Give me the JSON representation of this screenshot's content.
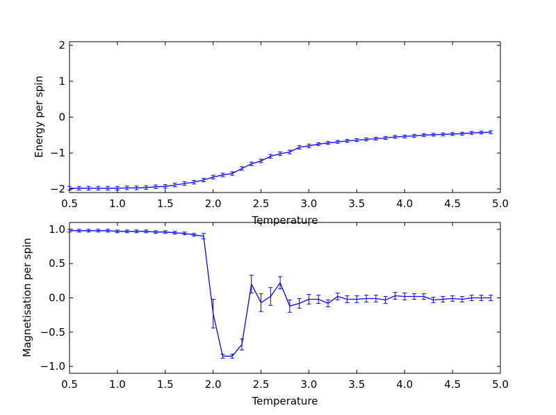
{
  "colors": {
    "series": "#0000ff",
    "axes": "#000000",
    "background": "#ffffff"
  },
  "chart_data": [
    {
      "type": "line",
      "xlabel": "Temperature",
      "ylabel": "Energy per spin",
      "xlim": [
        0.5,
        5.0
      ],
      "ylim": [
        -2.1,
        2.1
      ],
      "xticks": [
        "0.5",
        "1.0",
        "1.5",
        "2.0",
        "2.5",
        "3.0",
        "3.5",
        "4.0",
        "4.5",
        "5.0"
      ],
      "yticks": [
        "2",
        "1",
        "0",
        "−1",
        "−2"
      ],
      "grid": false,
      "series": [
        {
          "x": [
            0.5,
            0.6,
            0.7,
            0.8,
            0.9,
            1.0,
            1.1,
            1.2,
            1.3,
            1.4,
            1.5,
            1.6,
            1.7,
            1.8,
            1.9,
            2.0,
            2.1,
            2.2,
            2.3,
            2.4,
            2.5,
            2.6,
            2.7,
            2.8,
            2.9,
            3.0,
            3.1,
            3.2,
            3.3,
            3.4,
            3.5,
            3.6,
            3.7,
            3.8,
            3.9,
            4.0,
            4.1,
            4.2,
            4.3,
            4.4,
            4.5,
            4.6,
            4.7,
            4.8,
            4.9
          ],
          "y": [
            -1.98,
            -1.98,
            -1.98,
            -1.98,
            -1.98,
            -1.98,
            -1.97,
            -1.97,
            -1.96,
            -1.94,
            -1.93,
            -1.89,
            -1.85,
            -1.81,
            -1.75,
            -1.67,
            -1.61,
            -1.57,
            -1.43,
            -1.3,
            -1.22,
            -1.09,
            -1.02,
            -0.97,
            -0.84,
            -0.8,
            -0.75,
            -0.72,
            -0.69,
            -0.66,
            -0.64,
            -0.62,
            -0.6,
            -0.58,
            -0.55,
            -0.54,
            -0.52,
            -0.5,
            -0.49,
            -0.48,
            -0.47,
            -0.46,
            -0.44,
            -0.43,
            -0.42
          ],
          "error": [
            0.05,
            0.05,
            0.05,
            0.05,
            0.05,
            0.05,
            0.05,
            0.05,
            0.05,
            0.05,
            0.05,
            0.05,
            0.05,
            0.05,
            0.05,
            0.05,
            0.05,
            0.05,
            0.05,
            0.05,
            0.05,
            0.05,
            0.05,
            0.05,
            0.05,
            0.05,
            0.04,
            0.04,
            0.04,
            0.04,
            0.04,
            0.04,
            0.04,
            0.04,
            0.04,
            0.04,
            0.04,
            0.04,
            0.04,
            0.04,
            0.04,
            0.04,
            0.04,
            0.04,
            0.04
          ]
        }
      ]
    },
    {
      "type": "line",
      "xlabel": "Temperature",
      "ylabel": "Magnetisation per spin",
      "xlim": [
        0.5,
        5.0
      ],
      "ylim": [
        -1.1,
        1.1
      ],
      "xticks": [
        "0.5",
        "1.0",
        "1.5",
        "2.0",
        "2.5",
        "3.0",
        "3.5",
        "4.0",
        "4.5",
        "5.0"
      ],
      "yticks": [
        "1.0",
        "0.5",
        "0.0",
        "−0.5",
        "−1.0"
      ],
      "grid": false,
      "series": [
        {
          "x": [
            0.5,
            0.6,
            0.7,
            0.8,
            0.9,
            1.0,
            1.1,
            1.2,
            1.3,
            1.4,
            1.5,
            1.6,
            1.7,
            1.8,
            1.9,
            2.0,
            2.1,
            2.2,
            2.3,
            2.4,
            2.5,
            2.6,
            2.7,
            2.8,
            2.9,
            3.0,
            3.1,
            3.2,
            3.3,
            3.4,
            3.5,
            3.6,
            3.7,
            3.8,
            3.9,
            4.0,
            4.1,
            4.2,
            4.3,
            4.4,
            4.5,
            4.6,
            4.7,
            4.8,
            4.9
          ],
          "y": [
            0.98,
            0.98,
            0.98,
            0.98,
            0.98,
            0.97,
            0.97,
            0.97,
            0.97,
            0.96,
            0.96,
            0.95,
            0.94,
            0.92,
            0.9,
            -0.23,
            -0.85,
            -0.85,
            -0.68,
            0.2,
            -0.07,
            0.02,
            0.22,
            -0.12,
            -0.08,
            -0.02,
            -0.02,
            -0.08,
            0.02,
            -0.02,
            -0.02,
            -0.01,
            -0.01,
            -0.03,
            0.03,
            0.02,
            0.02,
            0.02,
            -0.03,
            -0.02,
            -0.01,
            -0.02,
            0.0,
            0.0,
            0.0
          ]
        }
      ],
      "error": [
        0.02,
        0.02,
        0.02,
        0.02,
        0.02,
        0.02,
        0.02,
        0.02,
        0.02,
        0.02,
        0.02,
        0.02,
        0.02,
        0.02,
        0.04,
        0.21,
        0.03,
        0.03,
        0.08,
        0.13,
        0.13,
        0.13,
        0.09,
        0.09,
        0.07,
        0.07,
        0.06,
        0.05,
        0.05,
        0.05,
        0.05,
        0.05,
        0.05,
        0.05,
        0.05,
        0.05,
        0.04,
        0.04,
        0.04,
        0.04,
        0.04,
        0.04,
        0.04,
        0.04,
        0.04
      ]
    }
  ]
}
